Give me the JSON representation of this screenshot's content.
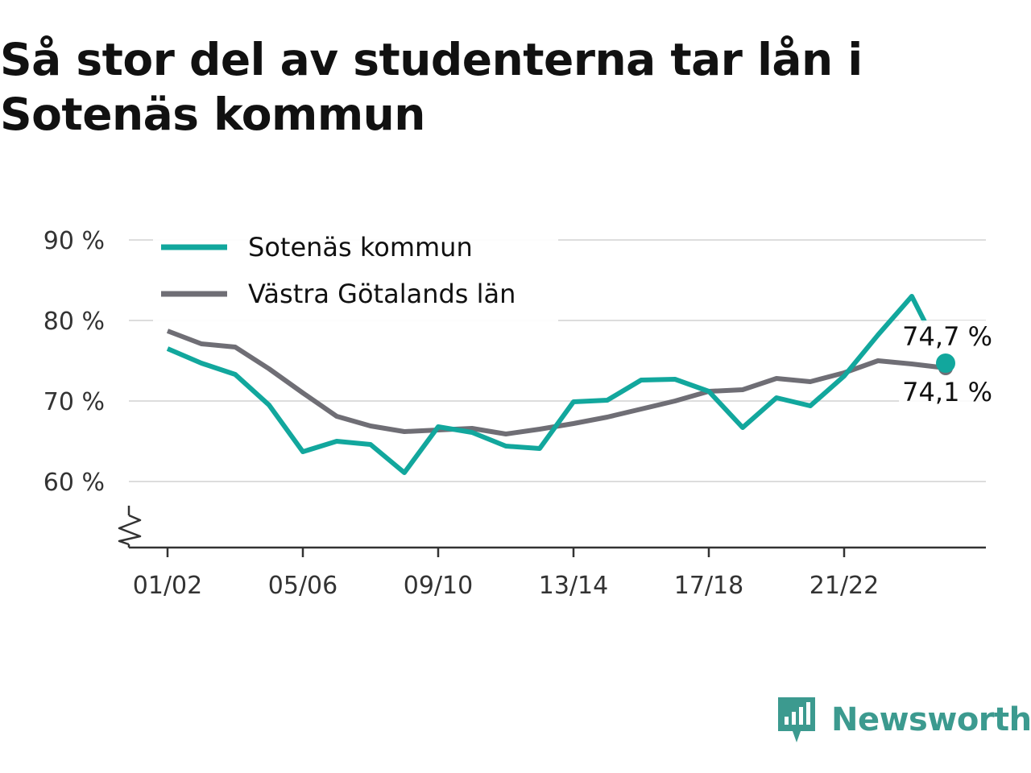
{
  "title": "Så stor del av studenterna tar lån i Sotenäs kommun",
  "brand": {
    "name": "Newsworthy",
    "icon": "newsworthy-logo-icon"
  },
  "colors": {
    "sotenas": "#12a79d",
    "vastra": "#6f6e75",
    "grid": "#dddddd",
    "axis": "#333333",
    "brand": "#3c9a8f"
  },
  "chart_data": {
    "type": "line",
    "ylim": [
      52,
      92
    ],
    "y_ticks": [
      60,
      70,
      80,
      90
    ],
    "y_tick_labels": [
      "60 %",
      "70 %",
      "80 %",
      "90 %"
    ],
    "x_tick_labels": [
      "01/02",
      "05/06",
      "09/10",
      "13/14",
      "17/18",
      "21/22"
    ],
    "x_tick_indices": [
      0,
      4,
      8,
      12,
      16,
      20
    ],
    "categories": [
      "01/02",
      "02/03",
      "03/04",
      "04/05",
      "05/06",
      "06/07",
      "07/08",
      "08/09",
      "09/10",
      "10/11",
      "11/12",
      "12/13",
      "13/14",
      "14/15",
      "15/16",
      "16/17",
      "17/18",
      "18/19",
      "19/20",
      "20/21",
      "21/22",
      "22/23",
      "23/24",
      "24/25"
    ],
    "legend_position": "top-left",
    "grid": true,
    "axis_break": true,
    "series": [
      {
        "name": "Sotenäs kommun",
        "color": "#12a79d",
        "values": [
          76.5,
          74.7,
          73.3,
          69.5,
          63.7,
          65.0,
          64.6,
          61.1,
          66.8,
          66.1,
          64.4,
          64.1,
          69.9,
          70.1,
          72.6,
          72.7,
          71.2,
          66.7,
          70.4,
          69.4,
          73.1,
          78.2,
          83.0,
          74.7
        ],
        "gap_before_last": true,
        "end_label": "74,7 %"
      },
      {
        "name": "Västra Götalands län",
        "color": "#6f6e75",
        "values": [
          78.7,
          77.1,
          76.7,
          74.0,
          71.0,
          68.1,
          66.9,
          66.2,
          66.4,
          66.6,
          65.9,
          66.5,
          67.2,
          68.0,
          69.0,
          70.0,
          71.2,
          71.4,
          72.8,
          72.4,
          73.5,
          75.0,
          74.6,
          74.1
        ],
        "end_label": "74,1 %"
      }
    ]
  }
}
